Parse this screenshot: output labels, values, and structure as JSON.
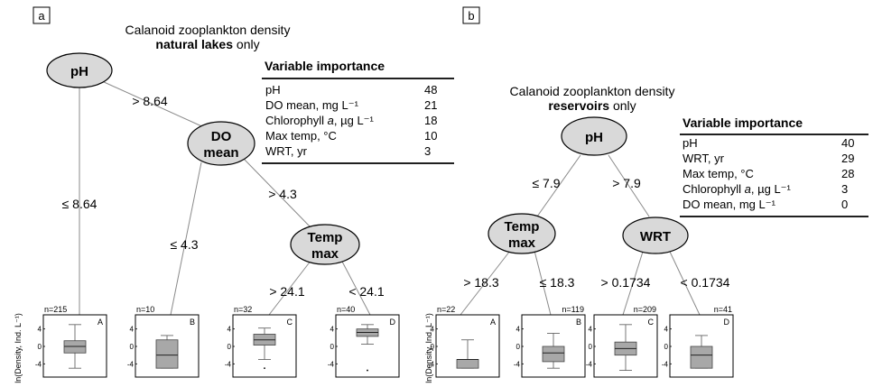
{
  "panel_a": {
    "label": "a",
    "title_line1": "Calanoid zooplankton density",
    "title_line2": "natural lakes",
    "title_line2_suffix": " only",
    "nodes": {
      "root": "pH",
      "do_line1": "DO",
      "do_line2": "mean",
      "temp_line1": "Temp",
      "temp_line2": "max"
    },
    "splits": {
      "root_left": "≤ 8.64",
      "root_right": "> 8.64",
      "do_left": "≤ 4.3",
      "do_right": "> 4.3",
      "temp_left": "> 24.1",
      "temp_right": "< 24.1"
    },
    "variable_importance": {
      "title": "Variable importance",
      "rows": [
        {
          "name": "pH",
          "value": "48"
        },
        {
          "name": "DO mean, mg L⁻¹",
          "value": "21"
        },
        {
          "name": "Chlorophyll a, µg L⁻¹",
          "value": "18"
        },
        {
          "name": "Max temp, °C",
          "value": "10"
        },
        {
          "name": "WRT, yr",
          "value": "3"
        }
      ]
    },
    "leaves": [
      {
        "id": "A",
        "n": "n=215",
        "min": -5,
        "q1": -1.5,
        "median": 0,
        "q3": 1.3,
        "max": 5
      },
      {
        "id": "B",
        "n": "n=10",
        "min": -5,
        "q1": -5,
        "median": -2,
        "q3": 1.5,
        "max": 2.5
      },
      {
        "id": "C",
        "n": "n=32",
        "min": -3,
        "q1": 0.3,
        "median": 1.5,
        "q3": 2.8,
        "max": 4.2,
        "outliers": [
          -5
        ]
      },
      {
        "id": "D",
        "n": "n=40",
        "min": 0.5,
        "q1": 2.3,
        "median": 3.2,
        "q3": 4,
        "max": 5,
        "outliers": [
          -5.5
        ]
      }
    ]
  },
  "panel_b": {
    "label": "b",
    "title_line1": "Calanoid zooplankton density",
    "title_line2": "reservoirs",
    "title_line2_suffix": " only",
    "nodes": {
      "root": "pH",
      "temp_line1": "Temp",
      "temp_line2": "max",
      "wrt": "WRT"
    },
    "splits": {
      "root_left": "≤ 7.9",
      "root_right": "> 7.9",
      "temp_left": "> 18.3",
      "temp_right": "≤ 18.3",
      "wrt_left": "> 0.1734",
      "wrt_right": "< 0.1734"
    },
    "variable_importance": {
      "title": "Variable importance",
      "rows": [
        {
          "name": "pH",
          "value": "40"
        },
        {
          "name": "WRT, yr",
          "value": "29"
        },
        {
          "name": "Max temp, °C",
          "value": "28"
        },
        {
          "name": "Chlorophyll a, µg L⁻¹",
          "value": "3"
        },
        {
          "name": "DO mean, mg L⁻¹",
          "value": "0"
        }
      ]
    },
    "leaves": [
      {
        "id": "A",
        "n": "n=22",
        "min": -5,
        "q1": -5,
        "median": -3,
        "q3": -3,
        "max": 1.5
      },
      {
        "id": "B",
        "n": "n=119",
        "min": -5,
        "q1": -3.5,
        "median": -1.5,
        "q3": 0,
        "max": 3
      },
      {
        "id": "C",
        "n": "n=209",
        "min": -5.5,
        "q1": -2,
        "median": -0.5,
        "q3": 1,
        "max": 5
      },
      {
        "id": "D",
        "n": "n=41",
        "min": -5,
        "q1": -5,
        "median": -2,
        "q3": 0,
        "max": 2.5
      }
    ]
  },
  "y_axis_label": "ln(Density, Ind. L⁻¹)",
  "y_ticks": [
    "4",
    "0",
    "-4"
  ]
}
